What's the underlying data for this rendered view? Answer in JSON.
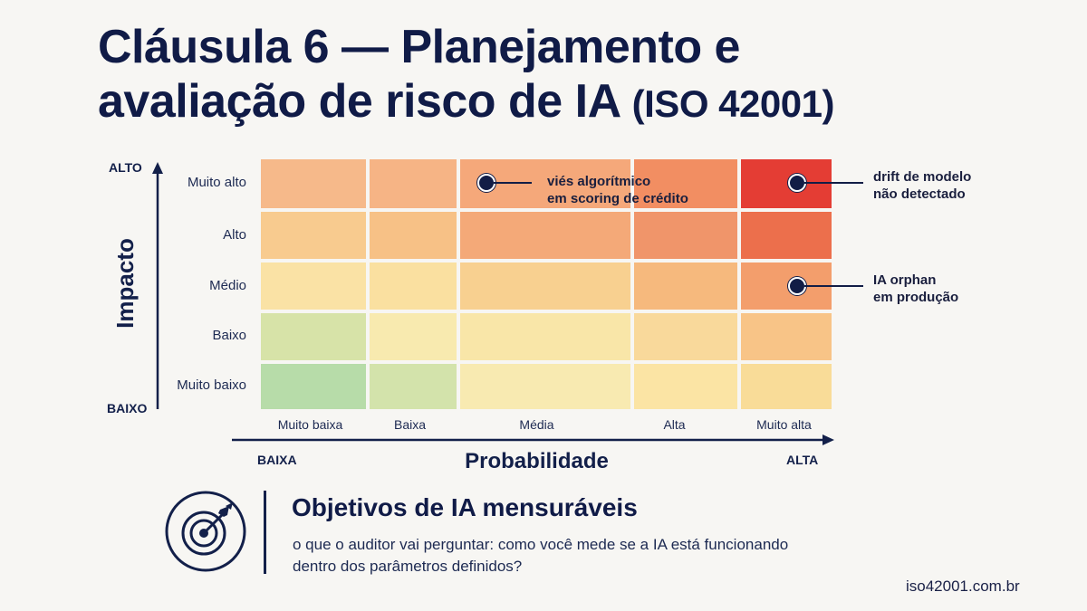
{
  "title": {
    "line1": "Cláusula 6 — Planejamento e",
    "line2_main": "avaliação de risco de IA",
    "line2_iso": "(ISO 42001)"
  },
  "matrix": {
    "y_axis": {
      "label": "Impacto",
      "high": "ALTO",
      "low": "BAIXO"
    },
    "x_axis": {
      "label": "Probabilidade",
      "low": "BAIXA",
      "high": "ALTA"
    },
    "rows": [
      "Muito alto",
      "Alto",
      "Médio",
      "Baixo",
      "Muito baixo"
    ],
    "columns": [
      "Muito baixa",
      "Baixa",
      "Média",
      "Alta",
      "Muito alta"
    ],
    "colors": [
      [
        "#f6b98a",
        "#f6b485",
        "#f5a87a",
        "#f28e62",
        "#e43d34"
      ],
      [
        "#f8cb8f",
        "#f7c186",
        "#f4a978",
        "#f0956a",
        "#ec6f4c"
      ],
      [
        "#fae2a5",
        "#fae0a0",
        "#f8d090",
        "#f6b97d",
        "#f39e6c"
      ],
      [
        "#d7e3a8",
        "#f8eaaf",
        "#f9e6a8",
        "#f9d99b",
        "#f8c487"
      ],
      [
        "#b7dca9",
        "#d3e3ab",
        "#f8eab1",
        "#fbe4a4",
        "#f9dc98"
      ]
    ],
    "risks": [
      {
        "text_line1": "viés algorítmico",
        "text_line2": "em scoring de crédito",
        "impact": "Muito alto",
        "probability": "Média"
      },
      {
        "text_line1": "drift de modelo",
        "text_line2": "não detectado",
        "impact": "Muito alto",
        "probability": "Muito alta"
      },
      {
        "text_line1": "IA orphan",
        "text_line2": "em produção",
        "impact": "Médio",
        "probability": "Muito alta"
      }
    ]
  },
  "footer": {
    "icon": "target-arrow-icon",
    "heading": "Objetivos de IA mensuráveis",
    "text": "o que o auditor vai perguntar: como você mede se a IA está funcionando dentro dos parâmetros definidos?",
    "site": "iso42001.com.br"
  }
}
